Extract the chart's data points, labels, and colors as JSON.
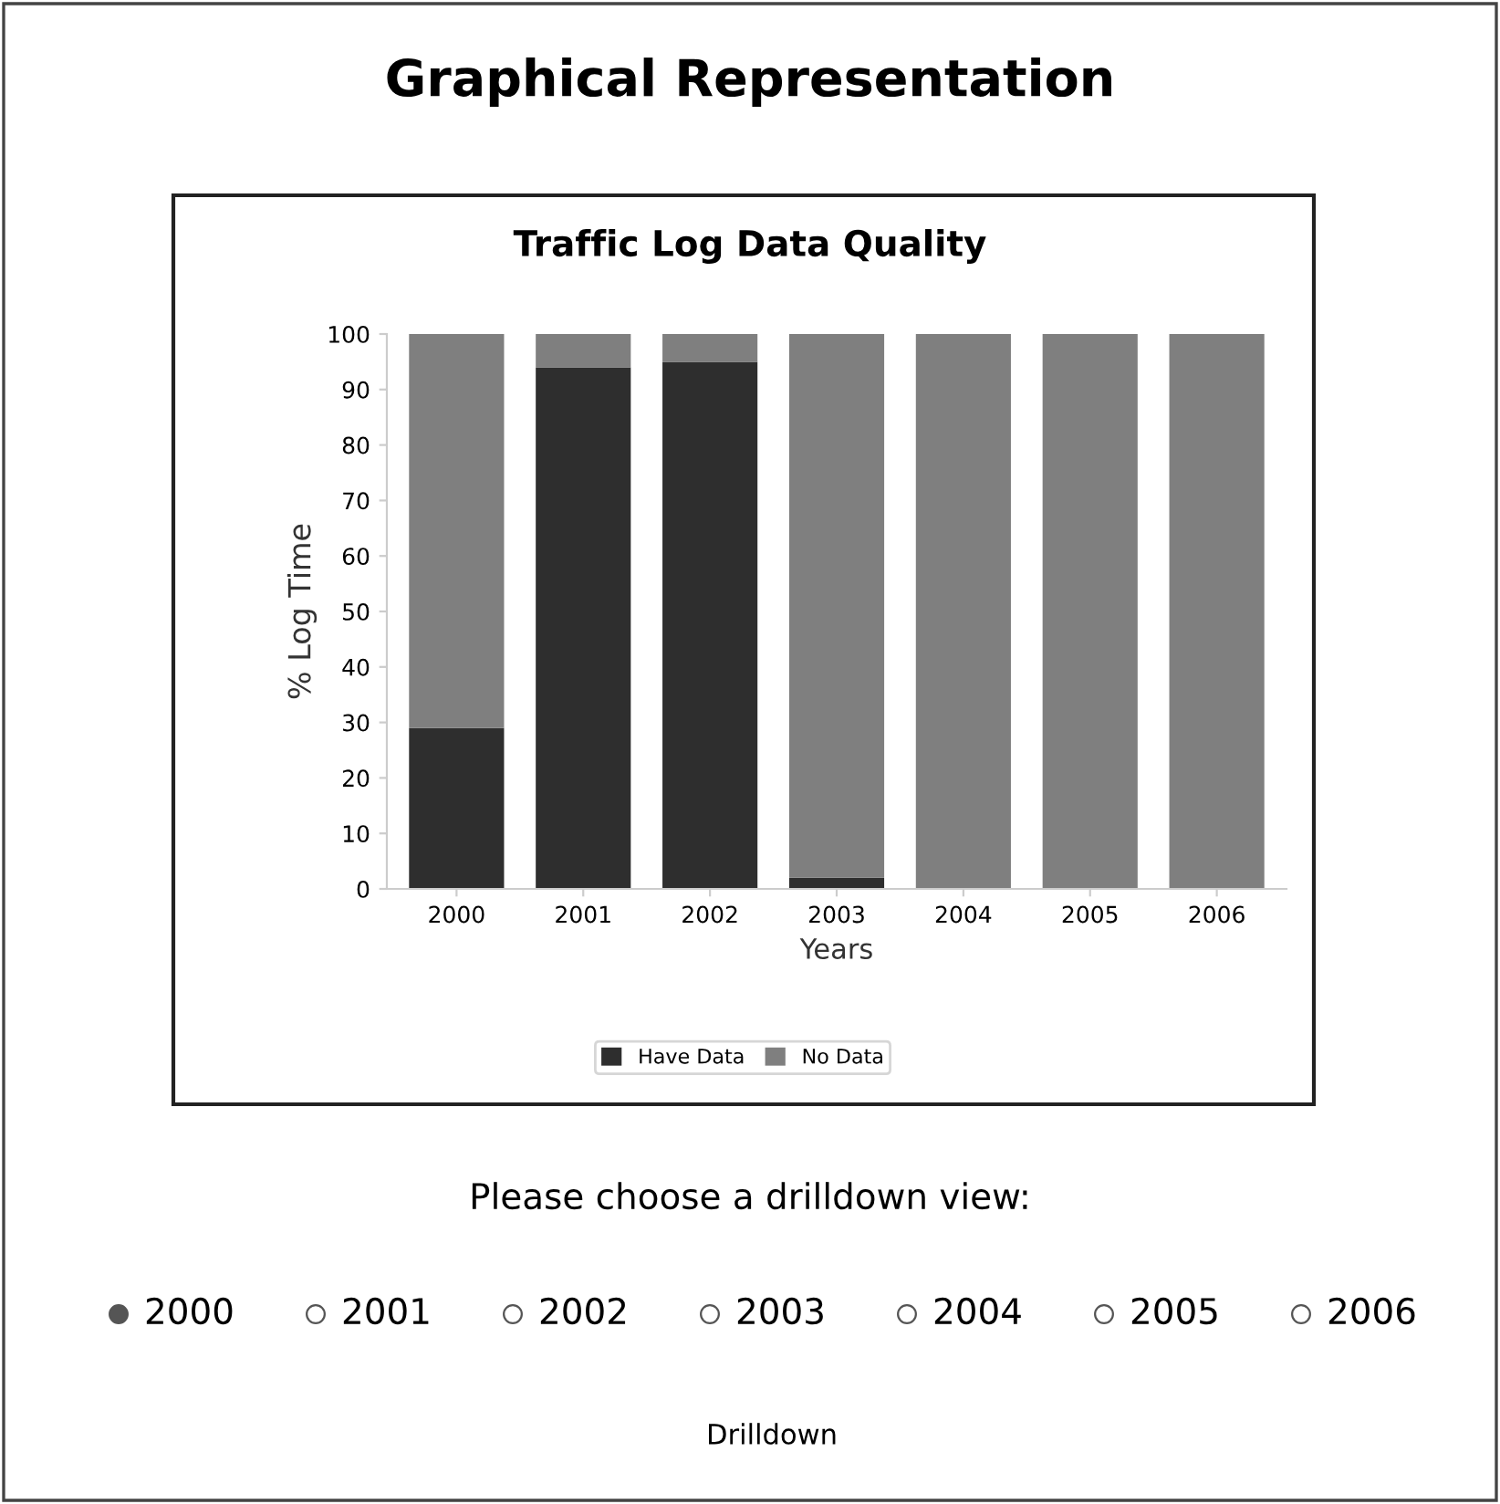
{
  "chart_data": {
    "type": "bar",
    "title": "Traffic Log Data Quality",
    "xlabel": "Years",
    "ylabel": "% Log Time",
    "categories": [
      "2000",
      "2001",
      "2002",
      "2003",
      "2004",
      "2005",
      "2006"
    ],
    "series": [
      {
        "name": "Have Data",
        "color": "#2e2e2e",
        "values": [
          29,
          94,
          95,
          2,
          0,
          0,
          0
        ]
      },
      {
        "name": "No Data",
        "color": "#7f7f7f",
        "values": [
          71,
          6,
          5,
          98,
          100,
          100,
          100
        ]
      }
    ],
    "stacked": true,
    "ylim": [
      0,
      100
    ],
    "yticks": [
      0,
      10,
      20,
      30,
      40,
      50,
      60,
      70,
      80,
      90,
      100
    ],
    "grid": false,
    "legend": "bottom",
    "annotations": [
      "Graphical Representation",
      "Please choose a drilldown view:",
      "2000",
      "2001",
      "2002",
      "2003",
      "2004",
      "2005",
      "2006",
      "Drilldown"
    ]
  }
}
